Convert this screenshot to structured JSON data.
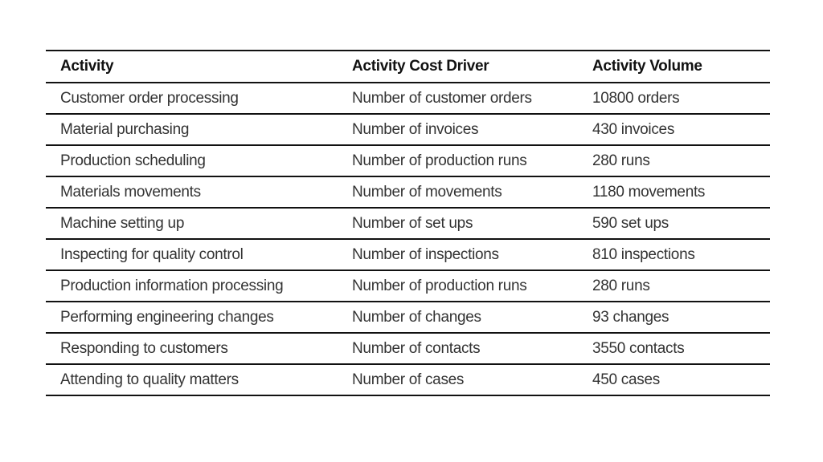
{
  "table": {
    "headers": [
      "Activity",
      "Activity Cost Driver",
      "Activity Volume"
    ],
    "rows": [
      [
        "Customer order processing",
        "Number of customer orders",
        "10800 orders"
      ],
      [
        "Material purchasing",
        "Number of invoices",
        "430 invoices"
      ],
      [
        "Production scheduling",
        "Number of production runs",
        "280 runs"
      ],
      [
        "Materials movements",
        "Number of movements",
        "1180 movements"
      ],
      [
        "Machine setting up",
        "Number of set ups",
        "590 set ups"
      ],
      [
        "Inspecting for quality control",
        "Number of inspections",
        "810 inspections"
      ],
      [
        "Production information processing",
        "Number of production runs",
        "280 runs"
      ],
      [
        "Performing engineering changes",
        "Number of changes",
        "93 changes"
      ],
      [
        "Responding to customers",
        "Number of contacts",
        "3550 contacts"
      ],
      [
        "Attending to quality matters",
        "Number of cases",
        "450 cases"
      ]
    ]
  }
}
